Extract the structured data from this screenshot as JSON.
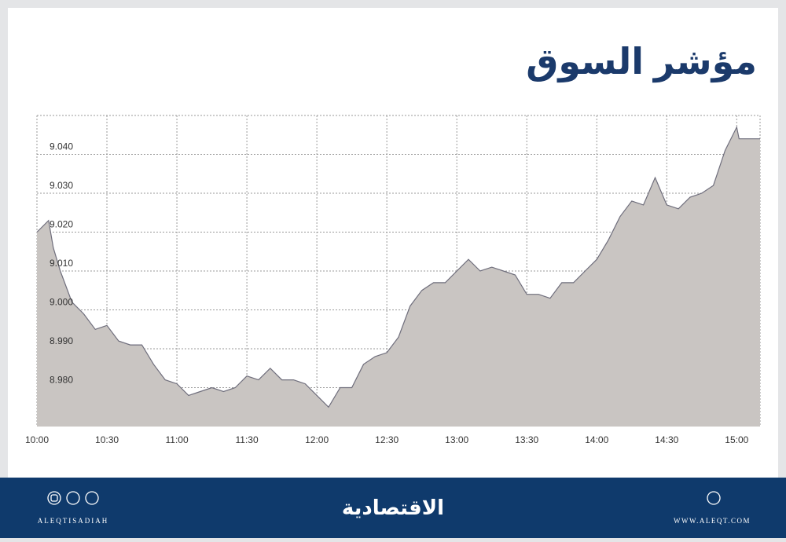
{
  "chart_data": {
    "type": "area",
    "title": "مؤشر السوق",
    "x": [
      "10:00",
      "10:05",
      "10:07",
      "10:10",
      "10:15",
      "10:20",
      "10:25",
      "10:30",
      "10:35",
      "10:40",
      "10:45",
      "10:50",
      "10:55",
      "11:00",
      "11:05",
      "11:10",
      "11:15",
      "11:20",
      "11:25",
      "11:30",
      "11:35",
      "11:40",
      "11:45",
      "11:50",
      "11:55",
      "12:00",
      "12:05",
      "12:10",
      "12:15",
      "12:20",
      "12:25",
      "12:30",
      "12:35",
      "12:40",
      "12:45",
      "12:50",
      "12:55",
      "13:00",
      "13:05",
      "13:10",
      "13:15",
      "13:20",
      "13:25",
      "13:30",
      "13:35",
      "13:40",
      "13:45",
      "13:50",
      "13:55",
      "14:00",
      "14:05",
      "14:10",
      "14:15",
      "14:20",
      "14:25",
      "14:30",
      "14:35",
      "14:40",
      "14:45",
      "14:50",
      "14:55",
      "15:00",
      "15:01",
      "15:10"
    ],
    "values": [
      9.02,
      9.023,
      9.016,
      9.01,
      9.002,
      8.999,
      8.995,
      8.996,
      8.992,
      8.991,
      8.991,
      8.986,
      8.982,
      8.981,
      8.978,
      8.979,
      8.98,
      8.979,
      8.98,
      8.983,
      8.982,
      8.985,
      8.982,
      8.982,
      8.981,
      8.978,
      8.975,
      8.98,
      8.98,
      8.986,
      8.988,
      8.989,
      8.993,
      9.001,
      9.005,
      9.007,
      9.007,
      9.01,
      9.013,
      9.01,
      9.011,
      9.01,
      9.009,
      9.004,
      9.004,
      9.003,
      9.007,
      9.007,
      9.01,
      9.013,
      9.018,
      9.024,
      9.028,
      9.027,
      9.034,
      9.027,
      9.026,
      9.029,
      9.03,
      9.032,
      9.041,
      9.047,
      9.044,
      9.044
    ],
    "color": "#c9c5c2",
    "line_color": "#6f6e7c",
    "xlim": [
      "10:00",
      "15:10"
    ],
    "xticks": [
      "10:00",
      "10:30",
      "11:00",
      "11:30",
      "12:00",
      "12:30",
      "13:00",
      "13:30",
      "14:00",
      "14:30",
      "15:00"
    ],
    "ylim": [
      8.97,
      9.05
    ],
    "yticks": [
      {
        "value": 8.98,
        "label": "8.980"
      },
      {
        "value": 8.99,
        "label": "8.990"
      },
      {
        "value": 9.0,
        "label": "9.000"
      },
      {
        "value": 9.01,
        "label": "9.010"
      },
      {
        "value": 9.02,
        "label": "9.020"
      },
      {
        "value": 9.03,
        "label": "9.030"
      },
      {
        "value": 9.04,
        "label": "9.040"
      }
    ],
    "grid": true
  },
  "footer": {
    "brand": "الاقتصادية",
    "handle": "ALEQTISADIAH",
    "website": "WWW.ALEQT.COM"
  }
}
